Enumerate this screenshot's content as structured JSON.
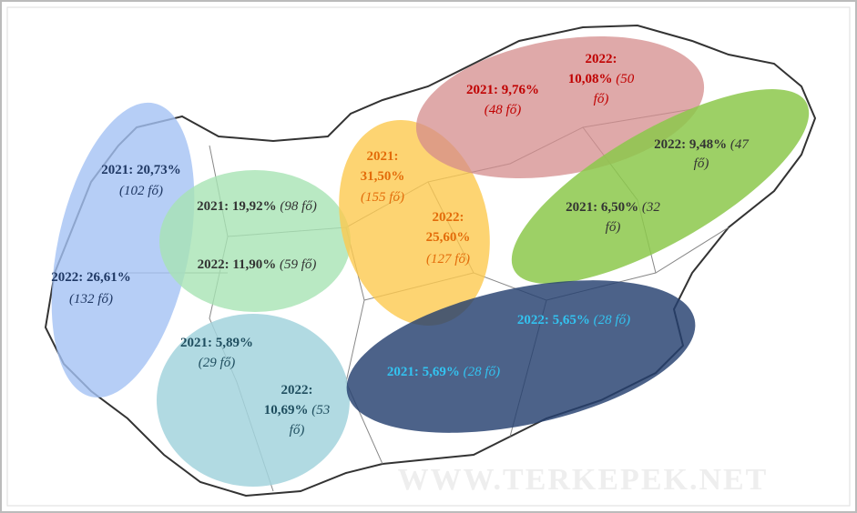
{
  "watermark": "WWW.TERKEPEK.NET",
  "regions": [
    {
      "lines": [
        {
          "bold": "2021: 20,73%"
        },
        {
          "italic": "(102 fő)"
        },
        {
          "bold": "2022: 26,61%"
        },
        {
          "italic": "(132 fő)"
        }
      ]
    },
    {
      "lines": [
        {
          "bold": "2021: 19,92%",
          "italic": " (98 fő)"
        },
        {
          "bold": "2022: 11,90%",
          "italic": " (59 fő)"
        }
      ]
    },
    {
      "lines": [
        {
          "bold": "2021: 5,89%"
        },
        {
          "italic": "(29 fő)"
        },
        {
          "bold": "2022:"
        },
        {
          "bold": "10,69%",
          "italic": " (53"
        },
        {
          "italic": "fő)"
        }
      ]
    },
    {
      "lines": [
        {
          "bold": "2021:"
        },
        {
          "bold": "31,50%"
        },
        {
          "italic": "(155 fő)"
        },
        {
          "bold": "2022:"
        },
        {
          "bold": "25,60%"
        },
        {
          "italic": "(127 fő)"
        }
      ]
    },
    {
      "lines": [
        {
          "bold": "2021: 9,76%"
        },
        {
          "italic": "(48 fő)"
        },
        {
          "bold": "2022:"
        },
        {
          "bold": "10,08%",
          "italic": " (50"
        },
        {
          "italic": "fő)"
        }
      ]
    },
    {
      "lines": [
        {
          "bold": "2022: 9,48%",
          "italic": " (47"
        },
        {
          "italic": "fő)"
        },
        {
          "bold": "2021: 6,50%",
          "italic": " (32"
        },
        {
          "italic": "fő)"
        }
      ]
    },
    {
      "lines": [
        {
          "bold": "2022: 5,65%",
          "italic": " (28 fő)"
        },
        {
          "bold": "2021: 5,69%",
          "italic": " (28 fő)"
        }
      ]
    }
  ]
}
